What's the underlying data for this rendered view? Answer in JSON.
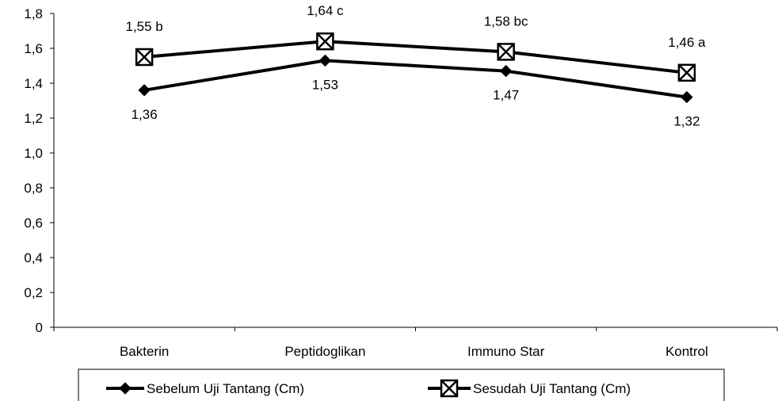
{
  "chart_data": {
    "type": "line",
    "categories": [
      "Bakterin",
      "Peptidoglikan",
      "Immuno Star",
      "Kontrol"
    ],
    "ylim": [
      0,
      1.8
    ],
    "yticks": [
      "0",
      "0,2",
      "0,4",
      "0,6",
      "0,8",
      "1,0",
      "1,2",
      "1,4",
      "1,6",
      "1,8"
    ],
    "grid": false,
    "legend_position": "bottom",
    "series": [
      {
        "name": "Sebelum Uji Tantang (Cm)",
        "marker": "diamond",
        "color": "#000000",
        "values": [
          1.36,
          1.53,
          1.47,
          1.32
        ],
        "labels": [
          "1,36",
          "1,53",
          "1,47",
          "1,32"
        ]
      },
      {
        "name": "Sesudah Uji Tantang (Cm)",
        "marker": "crossed-square",
        "color": "#000000",
        "values": [
          1.55,
          1.64,
          1.58,
          1.46
        ],
        "labels": [
          "1,55 b",
          "1,64 c",
          "1,58 bc",
          "1,46 a"
        ]
      }
    ]
  }
}
